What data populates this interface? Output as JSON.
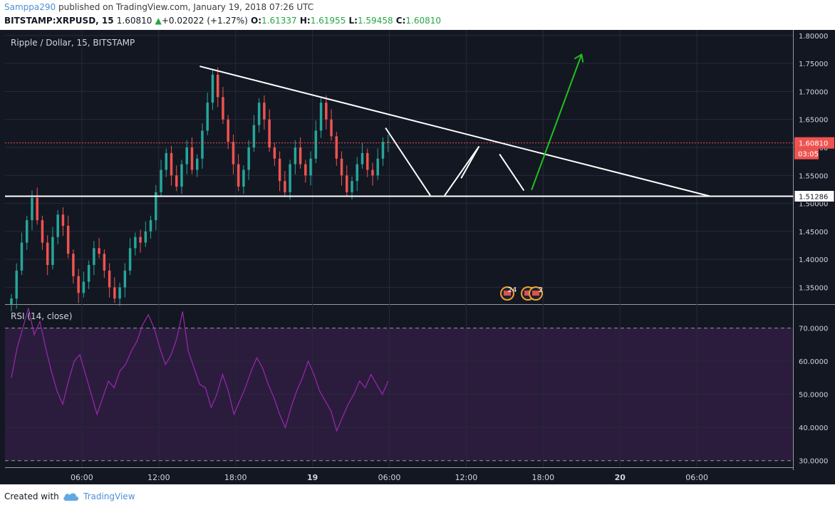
{
  "header": {
    "author": "Samppa290",
    "published_text": "published on TradingView.com, January 19, 2018 07:26 UTC",
    "symbol": "BITSTAMP:XRPUSD, 15",
    "last": "1.60810",
    "change": "+0.02022 (+1.27%)",
    "o_label": "O:",
    "o_value": "1.61337",
    "h_label": "H:",
    "h_value": "1.61955",
    "l_label": "L:",
    "l_value": "1.59458",
    "c_label": "C:",
    "c_value": "1.60810"
  },
  "footer": {
    "created_with": "Created with",
    "brand": "TradingView"
  },
  "colors": {
    "background": "#131722",
    "up": "#26a69a",
    "down": "#ef5350",
    "rsi_line": "#9c27b0",
    "rsi_band": "#2b1c3d",
    "trend_line": "#ffffff",
    "green_arrow": "#1ec21e",
    "price_marker": "#ef5350"
  },
  "chart_data": [
    {
      "type": "candlestick",
      "title": "Ripple / Dollar, 15, BITSTAMP",
      "ylim": [
        1.32,
        1.81
      ],
      "y_ticks": [
        "1.80000",
        "1.75000",
        "1.70000",
        "1.65000",
        "1.60000",
        "1.55000",
        "1.50000",
        "1.45000",
        "1.40000",
        "1.35000"
      ],
      "x_ticks": [
        "06:00",
        "12:00",
        "18:00",
        "19",
        "06:00",
        "12:00",
        "18:00",
        "20",
        "06:00"
      ],
      "x_tick_hours": [
        6,
        12,
        18,
        24,
        30,
        36,
        42,
        48,
        54
      ],
      "x_range_hours": [
        0,
        61.5
      ],
      "current_price": "1.60810",
      "countdown": "03:05",
      "support_label": "1.51286",
      "support_level": 1.51286,
      "closes": [
        1.33,
        1.38,
        1.43,
        1.47,
        1.51,
        1.47,
        1.43,
        1.39,
        1.44,
        1.48,
        1.46,
        1.41,
        1.37,
        1.34,
        1.36,
        1.39,
        1.42,
        1.41,
        1.38,
        1.35,
        1.33,
        1.35,
        1.38,
        1.42,
        1.44,
        1.43,
        1.45,
        1.47,
        1.52,
        1.56,
        1.59,
        1.55,
        1.53,
        1.57,
        1.6,
        1.56,
        1.58,
        1.63,
        1.68,
        1.73,
        1.69,
        1.65,
        1.61,
        1.57,
        1.53,
        1.56,
        1.6,
        1.64,
        1.68,
        1.65,
        1.6,
        1.58,
        1.54,
        1.52,
        1.57,
        1.6,
        1.57,
        1.55,
        1.58,
        1.63,
        1.68,
        1.65,
        1.62,
        1.58,
        1.55,
        1.52,
        1.54,
        1.57,
        1.59,
        1.56,
        1.55,
        1.58,
        1.61,
        1.61
      ],
      "rsi": {
        "title": "RSI (14, close)",
        "ylim": [
          28,
          77
        ],
        "y_ticks": [
          "70.0000",
          "60.0000",
          "50.0000",
          "40.0000",
          "30.0000"
        ],
        "upper_band": 70,
        "lower_band": 30,
        "values": [
          55,
          64,
          70,
          76,
          68,
          72,
          64,
          57,
          51,
          47,
          54,
          60,
          62,
          56,
          50,
          44,
          49,
          54,
          52,
          57,
          59,
          63,
          66,
          71,
          74,
          70,
          64,
          59,
          62,
          67,
          75,
          63,
          58,
          53,
          52,
          46,
          50,
          56,
          51,
          44,
          48,
          52,
          57,
          61,
          58,
          53,
          49,
          44,
          40,
          46,
          51,
          55,
          60,
          56,
          51,
          48,
          45,
          39,
          43,
          47,
          50,
          54,
          52,
          56,
          53,
          50,
          54
        ]
      },
      "projection": {
        "zigzag": [
          [
            29.7,
            1.635
          ],
          [
            33.2,
            1.514
          ],
          [
            35.6,
            1.545
          ],
          [
            37.0,
            1.602
          ],
          [
            38.6,
            1.588
          ],
          [
            40.5,
            1.523
          ]
        ],
        "arrow": [
          [
            41.1,
            1.524
          ],
          [
            45.0,
            1.766
          ]
        ],
        "trend_line": [
          [
            15.2,
            1.745
          ],
          [
            55.0,
            1.513
          ]
        ]
      },
      "event_badges": [
        "24",
        "5",
        "2"
      ]
    }
  ]
}
